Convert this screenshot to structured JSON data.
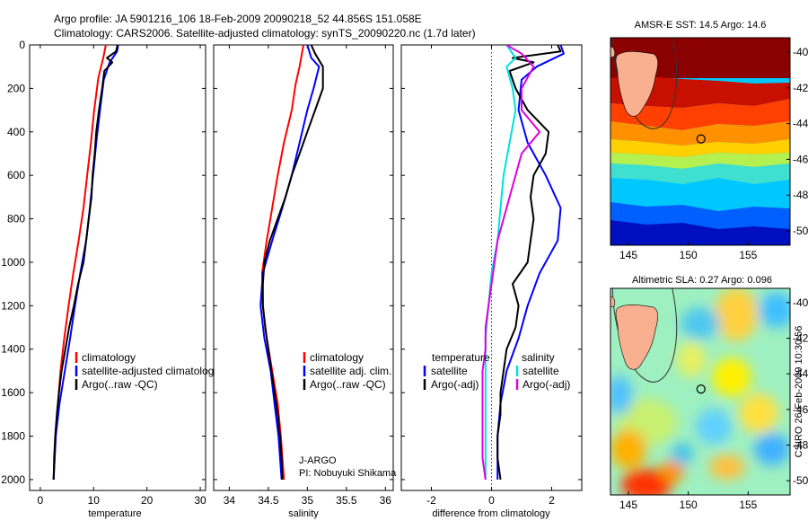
{
  "header": {
    "line1": "Argo profile: JA 5901216_106 18-Feb-2009 20090218_52 44.856S 151.058E",
    "line2": "Climatology: CARS2006. Satellite-adjusted climatology: synTS_20090220.nc (1.7d later)"
  },
  "colors": {
    "climatology": "#ff0000",
    "satellite": "#0000ff",
    "argo": "#000000",
    "satellite_salinity_diff": "#00e0e0",
    "argo_salinity_diff": "#e000e0"
  },
  "chart_data": [
    {
      "type": "line",
      "name": "temperature-profile",
      "xlabel": "temperature",
      "xlim": [
        -2,
        31
      ],
      "xticks": [
        0,
        10,
        20,
        30
      ],
      "ylim": [
        2050,
        0
      ],
      "yticks": [
        0,
        200,
        400,
        600,
        800,
        1000,
        1200,
        1400,
        1600,
        1800,
        2000
      ],
      "legend": [
        "climatology",
        "satellite-adjusted climatology",
        "Argo(..raw -QC)"
      ],
      "series": [
        {
          "name": "climatology",
          "points": [
            [
              12.3,
              0
            ],
            [
              11.8,
              60
            ],
            [
              10.9,
              150
            ],
            [
              10.1,
              300
            ],
            [
              9.5,
              450
            ],
            [
              8.8,
              600
            ],
            [
              8.1,
              750
            ],
            [
              7.2,
              900
            ],
            [
              6.2,
              1050
            ],
            [
              5.3,
              1200
            ],
            [
              4.5,
              1350
            ],
            [
              3.8,
              1500
            ],
            [
              3.3,
              1650
            ],
            [
              2.9,
              1800
            ],
            [
              2.6,
              1950
            ],
            [
              2.5,
              2000
            ]
          ]
        },
        {
          "name": "satellite-adjusted climatology",
          "points": [
            [
              14.6,
              0
            ],
            [
              14.4,
              30
            ],
            [
              13.0,
              80
            ],
            [
              11.9,
              160
            ],
            [
              11.2,
              300
            ],
            [
              10.5,
              450
            ],
            [
              9.9,
              600
            ],
            [
              9.3,
              750
            ],
            [
              8.6,
              900
            ],
            [
              7.5,
              1050
            ],
            [
              6.5,
              1200
            ],
            [
              5.6,
              1350
            ],
            [
              4.6,
              1500
            ],
            [
              3.6,
              1650
            ],
            [
              2.9,
              1800
            ],
            [
              2.6,
              1950
            ],
            [
              2.5,
              2000
            ]
          ]
        },
        {
          "name": "Argo(..raw -QC)",
          "points": [
            [
              14.5,
              0
            ],
            [
              14.2,
              30
            ],
            [
              12.5,
              60
            ],
            [
              13.5,
              80
            ],
            [
              12.0,
              120
            ],
            [
              11.6,
              200
            ],
            [
              11.0,
              300
            ],
            [
              10.5,
              400
            ],
            [
              10.2,
              500
            ],
            [
              9.8,
              600
            ],
            [
              9.6,
              700
            ],
            [
              9.1,
              800
            ],
            [
              8.6,
              900
            ],
            [
              8.1,
              1000
            ],
            [
              7.1,
              1100
            ],
            [
              6.3,
              1200
            ],
            [
              5.4,
              1300
            ],
            [
              4.7,
              1400
            ],
            [
              4.0,
              1500
            ],
            [
              3.5,
              1600
            ],
            [
              3.1,
              1700
            ],
            [
              2.8,
              1800
            ],
            [
              2.6,
              1900
            ],
            [
              2.5,
              2000
            ]
          ]
        }
      ]
    },
    {
      "type": "line",
      "name": "salinity-profile",
      "xlabel": "salinity",
      "xlim": [
        33.8,
        36.1
      ],
      "xticks": [
        34,
        34.5,
        35,
        35.5,
        36
      ],
      "ylim": [
        2050,
        0
      ],
      "legend": [
        "climatology",
        "satellite adj. clim.",
        "Argo(..raw -QC)"
      ],
      "annotation": [
        "J-ARGO",
        "PI: Nobuyuki Shikama"
      ],
      "series": [
        {
          "name": "climatology",
          "points": [
            [
              34.95,
              0
            ],
            [
              34.9,
              100
            ],
            [
              34.85,
              180
            ],
            [
              34.8,
              300
            ],
            [
              34.7,
              450
            ],
            [
              34.62,
              600
            ],
            [
              34.55,
              750
            ],
            [
              34.48,
              900
            ],
            [
              34.42,
              1050
            ],
            [
              34.43,
              1200
            ],
            [
              34.48,
              1350
            ],
            [
              34.55,
              1500
            ],
            [
              34.62,
              1650
            ],
            [
              34.66,
              1800
            ],
            [
              34.69,
              1950
            ],
            [
              34.7,
              2000
            ]
          ]
        },
        {
          "name": "satellite adj. clim.",
          "points": [
            [
              35.0,
              0
            ],
            [
              35.05,
              60
            ],
            [
              35.15,
              100
            ],
            [
              35.08,
              200
            ],
            [
              35.0,
              300
            ],
            [
              34.9,
              450
            ],
            [
              34.8,
              600
            ],
            [
              34.68,
              750
            ],
            [
              34.55,
              900
            ],
            [
              34.43,
              1050
            ],
            [
              34.4,
              1200
            ],
            [
              34.45,
              1350
            ],
            [
              34.53,
              1500
            ],
            [
              34.58,
              1650
            ],
            [
              34.63,
              1800
            ],
            [
              34.66,
              1950
            ],
            [
              34.67,
              2000
            ]
          ]
        },
        {
          "name": "Argo(..raw -QC)",
          "points": [
            [
              35.05,
              0
            ],
            [
              35.1,
              40
            ],
            [
              35.2,
              100
            ],
            [
              35.2,
              200
            ],
            [
              35.1,
              300
            ],
            [
              35.0,
              400
            ],
            [
              34.9,
              500
            ],
            [
              34.8,
              600
            ],
            [
              34.72,
              700
            ],
            [
              34.62,
              800
            ],
            [
              34.52,
              900
            ],
            [
              34.45,
              1000
            ],
            [
              34.43,
              1100
            ],
            [
              34.43,
              1200
            ],
            [
              34.46,
              1300
            ],
            [
              34.5,
              1400
            ],
            [
              34.54,
              1500
            ],
            [
              34.58,
              1600
            ],
            [
              34.62,
              1700
            ],
            [
              34.65,
              1800
            ],
            [
              34.67,
              1900
            ],
            [
              34.68,
              2000
            ]
          ]
        }
      ]
    },
    {
      "type": "line",
      "name": "difference-profile",
      "xlabel": "difference from climatology",
      "xlim": [
        -3,
        3
      ],
      "xticks": [
        -2,
        0,
        2
      ],
      "ylim": [
        2050,
        0
      ],
      "legend_title_left": "temperature",
      "legend_title_right": "salinity",
      "legend": [
        "satellite",
        "Argo(-adj)",
        "satellite",
        "Argo(-adj)"
      ],
      "series": [
        {
          "name": "temperature satellite",
          "points": [
            [
              2.3,
              0
            ],
            [
              2.4,
              40
            ],
            [
              1.5,
              100
            ],
            [
              1.0,
              160
            ],
            [
              0.9,
              300
            ],
            [
              1.2,
              450
            ],
            [
              1.8,
              600
            ],
            [
              2.3,
              750
            ],
            [
              2.2,
              900
            ],
            [
              1.6,
              1050
            ],
            [
              1.2,
              1200
            ],
            [
              0.9,
              1350
            ],
            [
              0.5,
              1500
            ],
            [
              0.3,
              1650
            ],
            [
              0.2,
              1800
            ],
            [
              0.2,
              1950
            ],
            [
              0.2,
              2000
            ]
          ]
        },
        {
          "name": "temperature Argo(-adj)",
          "points": [
            [
              2.2,
              0
            ],
            [
              2.3,
              30
            ],
            [
              0.7,
              60
            ],
            [
              1.4,
              80
            ],
            [
              0.6,
              120
            ],
            [
              0.8,
              200
            ],
            [
              1.2,
              300
            ],
            [
              1.9,
              400
            ],
            [
              1.8,
              500
            ],
            [
              1.4,
              600
            ],
            [
              1.3,
              700
            ],
            [
              1.4,
              800
            ],
            [
              1.3,
              900
            ],
            [
              1.2,
              1000
            ],
            [
              0.7,
              1100
            ],
            [
              0.9,
              1200
            ],
            [
              0.8,
              1300
            ],
            [
              0.5,
              1400
            ],
            [
              0.4,
              1500
            ],
            [
              0.3,
              1600
            ],
            [
              0.3,
              1700
            ],
            [
              0.2,
              1800
            ],
            [
              0.2,
              1900
            ],
            [
              0.3,
              2000
            ]
          ]
        },
        {
          "name": "salinity satellite",
          "points": [
            [
              0.5,
              0
            ],
            [
              0.8,
              60
            ],
            [
              0.5,
              100
            ],
            [
              0.7,
              200
            ],
            [
              0.8,
              300
            ],
            [
              0.6,
              450
            ],
            [
              0.4,
              600
            ],
            [
              0.3,
              750
            ],
            [
              0.2,
              900
            ],
            [
              0.0,
              1050
            ],
            [
              -0.1,
              1200
            ],
            [
              -0.2,
              1350
            ],
            [
              -0.2,
              1500
            ],
            [
              -0.2,
              1650
            ],
            [
              -0.2,
              1800
            ],
            [
              -0.2,
              1950
            ],
            [
              -0.2,
              2000
            ]
          ]
        },
        {
          "name": "salinity Argo(-adj)",
          "points": [
            [
              0.5,
              0
            ],
            [
              1.0,
              40
            ],
            [
              1.4,
              100
            ],
            [
              1.0,
              200
            ],
            [
              1.0,
              300
            ],
            [
              1.6,
              400
            ],
            [
              1.0,
              500
            ],
            [
              0.8,
              600
            ],
            [
              0.6,
              700
            ],
            [
              0.4,
              800
            ],
            [
              0.2,
              900
            ],
            [
              0.1,
              1000
            ],
            [
              0.0,
              1100
            ],
            [
              -0.1,
              1200
            ],
            [
              -0.2,
              1300
            ],
            [
              -0.2,
              1400
            ],
            [
              -0.3,
              1500
            ],
            [
              -0.3,
              1600
            ],
            [
              -0.3,
              1700
            ],
            [
              -0.3,
              1800
            ],
            [
              -0.3,
              1900
            ],
            [
              -0.2,
              2000
            ]
          ]
        }
      ]
    },
    {
      "type": "heatmap",
      "name": "sst-map",
      "title": "AMSR-E SST: 14.5 Argo: 14.6",
      "xlim": [
        143.5,
        158.5
      ],
      "ylim": [
        -50.8,
        -39.2
      ],
      "xticks": [
        145,
        150,
        155
      ],
      "yticks": [
        -40,
        -42,
        -44,
        -46,
        -48,
        -50
      ],
      "argo_position": [
        151.058,
        -44.856
      ]
    },
    {
      "type": "heatmap",
      "name": "sla-map",
      "title": "Altimetric SLA: 0.27 Argo: 0.096",
      "xlim": [
        143.5,
        158.5
      ],
      "ylim": [
        -50.8,
        -39.2
      ],
      "xticks": [
        145,
        150,
        155
      ],
      "yticks": [
        -40,
        -42,
        -44,
        -46,
        -48,
        -50
      ],
      "argo_position": [
        151.058,
        -44.856
      ],
      "side_label": "CSIRO 26-Feb-2009 10:30:56"
    }
  ]
}
